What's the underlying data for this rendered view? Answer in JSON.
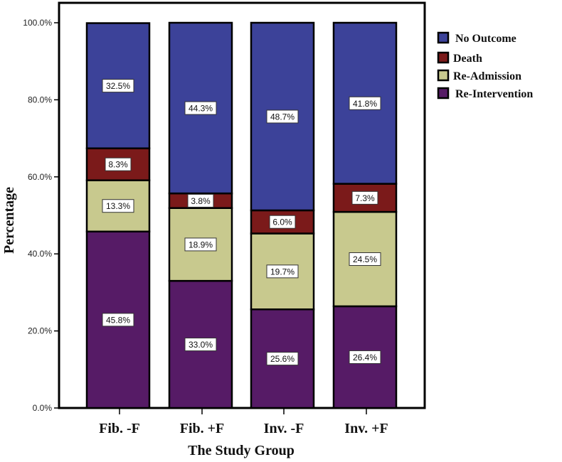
{
  "chart_data": {
    "type": "bar",
    "stacked": true,
    "title": "",
    "xlabel": "The Study Group",
    "ylabel": "Percentage",
    "ylim": [
      0,
      100
    ],
    "yticks": [
      "0.0%",
      "20.0%",
      "40.0%",
      "60.0%",
      "80.0%",
      "100.0%"
    ],
    "categories": [
      "Fib. -F",
      "Fib. +F",
      "Inv. -F",
      "Inv. +F"
    ],
    "series": [
      {
        "name": "Re-Intervention",
        "color": "#561B66",
        "values": [
          45.8,
          33.0,
          25.6,
          26.4
        ],
        "labels": [
          "45.8%",
          "33.0%",
          "25.6%",
          "26.4%"
        ]
      },
      {
        "name": "Re-Admission",
        "color": "#C8C98E",
        "values": [
          13.3,
          18.9,
          19.7,
          24.5
        ],
        "labels": [
          "13.3%",
          "18.9%",
          "19.7%",
          "24.5%"
        ]
      },
      {
        "name": "Death",
        "color": "#7B1A1A",
        "values": [
          8.3,
          3.8,
          6.0,
          7.3
        ],
        "labels": [
          "8.3%",
          "3.8%",
          "6.0%",
          "7.3%"
        ]
      },
      {
        "name": "No Outcome",
        "color": "#3C4299",
        "values": [
          32.5,
          44.3,
          48.7,
          41.8
        ],
        "labels": [
          "32.5%",
          "44.3%",
          "48.7%",
          "41.8%"
        ]
      }
    ],
    "legend": {
      "position": "right",
      "entries": [
        "No Outcome",
        "Death",
        "Re-Admission",
        "Re-Intervention"
      ]
    },
    "grid": false
  }
}
